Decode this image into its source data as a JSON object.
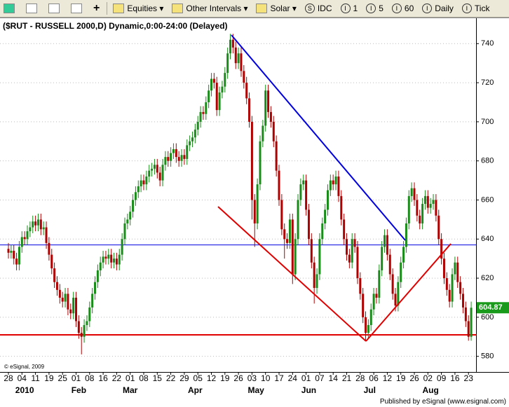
{
  "toolbar": {
    "menus": [
      "Equities",
      "Other Intervals",
      "Solar"
    ],
    "intervals": [
      "IDC",
      "1",
      "5",
      "60",
      "Daily",
      "Tick"
    ]
  },
  "footer": "Published by eSignal (www.esignal.com)",
  "chart_data": {
    "type": "candlestick",
    "title": "($RUT - RUSSELL 2000,D) Dynamic,0:00-24:00 (Delayed)",
    "copyright": "© eSignal, 2009",
    "up_color": "#1a8c1a",
    "down_color": "#b00000",
    "ylim": [
      572,
      753
    ],
    "yticks": [
      580,
      600,
      620,
      640,
      660,
      680,
      700,
      720,
      740
    ],
    "grid": true,
    "reference_lines": [
      {
        "value": 591,
        "color": "#e00000"
      },
      {
        "value": 637,
        "color": "#0000e0"
      }
    ],
    "months": [
      "2010",
      "Feb",
      "Mar",
      "Apr",
      "May",
      "Jun",
      "Jul",
      "Aug"
    ],
    "categories": [
      "28",
      null,
      null,
      null,
      null,
      "04",
      null,
      null,
      null,
      null,
      "11",
      null,
      null,
      null,
      null,
      "19",
      null,
      null,
      null,
      null,
      "25",
      null,
      null,
      null,
      null,
      "01",
      null,
      null,
      null,
      null,
      "08",
      null,
      null,
      null,
      null,
      "16",
      null,
      null,
      null,
      null,
      "22",
      null,
      null,
      null,
      null,
      "01",
      null,
      null,
      null,
      null,
      "08",
      null,
      null,
      null,
      null,
      "15",
      null,
      null,
      null,
      null,
      "22",
      null,
      null,
      null,
      null,
      "29",
      null,
      null,
      null,
      null,
      "05",
      null,
      null,
      null,
      null,
      "12",
      null,
      null,
      null,
      null,
      "19",
      null,
      null,
      null,
      null,
      "26",
      null,
      null,
      null,
      null,
      "03",
      null,
      null,
      null,
      null,
      "10",
      null,
      null,
      null,
      null,
      "17",
      null,
      null,
      null,
      null,
      "24",
      null,
      null,
      null,
      null,
      "01",
      null,
      null,
      null,
      null,
      "07",
      null,
      null,
      null,
      null,
      "14",
      null,
      null,
      null,
      null,
      "21",
      null,
      null,
      null,
      null,
      "28",
      null,
      null,
      null,
      null,
      "06",
      null,
      null,
      null,
      null,
      "12",
      null,
      null,
      null,
      null,
      "19",
      null,
      null,
      null,
      null,
      "26",
      null,
      null,
      null,
      null,
      "02",
      null,
      null,
      null,
      null,
      "09",
      null,
      null,
      null,
      null,
      "16",
      null,
      null,
      null,
      null,
      "23",
      null
    ],
    "open": [
      635,
      633,
      634,
      630,
      627,
      636,
      641,
      640,
      644,
      646,
      649,
      647,
      650,
      645,
      646,
      638,
      632,
      625,
      618,
      614,
      610,
      608,
      612,
      604,
      602,
      610,
      598,
      592,
      590,
      596,
      598,
      605,
      612,
      618,
      624,
      628,
      631,
      630,
      632,
      628,
      630,
      627,
      632,
      640,
      648,
      650,
      654,
      660,
      664,
      667,
      670,
      668,
      672,
      675,
      676,
      678,
      674,
      670,
      678,
      682,
      680,
      684,
      686,
      682,
      680,
      683,
      681,
      688,
      690,
      692,
      696,
      700,
      705,
      704,
      710,
      716,
      722,
      720,
      706,
      715,
      718,
      725,
      735,
      742,
      738,
      730,
      735,
      726,
      720,
      712,
      700,
      660,
      648,
      668,
      690,
      698,
      716,
      705,
      700,
      690,
      675,
      660,
      645,
      640,
      638,
      650,
      622,
      640,
      660,
      668,
      670,
      655,
      640,
      628,
      615,
      622,
      640,
      648,
      655,
      665,
      670,
      668,
      672,
      662,
      650,
      640,
      632,
      628,
      640,
      636,
      620,
      612,
      600,
      592,
      596,
      604,
      612,
      610,
      624,
      636,
      642,
      632,
      622,
      612,
      606,
      618,
      628,
      636,
      648,
      662,
      666,
      660,
      652,
      648,
      658,
      662,
      656,
      658,
      660,
      652,
      640,
      630,
      620,
      614,
      608,
      622,
      628,
      618,
      612,
      605,
      598,
      590
    ],
    "high": [
      638,
      637,
      637,
      633,
      639,
      644,
      644,
      647,
      649,
      652,
      652,
      653,
      653,
      649,
      649,
      641,
      635,
      628,
      621,
      617,
      613,
      615,
      615,
      607,
      613,
      613,
      601,
      595,
      599,
      601,
      608,
      615,
      621,
      627,
      631,
      634,
      634,
      635,
      635,
      633,
      633,
      635,
      643,
      651,
      653,
      657,
      663,
      667,
      670,
      673,
      673,
      675,
      678,
      679,
      681,
      681,
      677,
      681,
      685,
      685,
      687,
      689,
      689,
      685,
      686,
      686,
      691,
      693,
      695,
      699,
      703,
      708,
      708,
      713,
      719,
      725,
      725,
      723,
      718,
      721,
      728,
      738,
      745,
      745,
      741,
      738,
      738,
      729,
      723,
      715,
      703,
      663,
      671,
      693,
      701,
      719,
      719,
      708,
      703,
      693,
      678,
      663,
      648,
      643,
      653,
      653,
      643,
      663,
      671,
      673,
      673,
      658,
      643,
      631,
      625,
      643,
      651,
      658,
      668,
      673,
      673,
      675,
      675,
      665,
      653,
      643,
      635,
      643,
      643,
      639,
      623,
      615,
      603,
      599,
      607,
      615,
      615,
      627,
      639,
      645,
      645,
      635,
      625,
      615,
      621,
      631,
      639,
      651,
      665,
      669,
      669,
      663,
      655,
      661,
      665,
      665,
      661,
      663,
      663,
      655,
      643,
      633,
      623,
      617,
      625,
      631,
      631,
      621,
      615,
      608,
      601,
      608
    ],
    "low": [
      630,
      630,
      627,
      624,
      624,
      633,
      637,
      637,
      641,
      643,
      644,
      644,
      642,
      642,
      635,
      629,
      622,
      615,
      611,
      607,
      605,
      605,
      601,
      599,
      599,
      595,
      589,
      581,
      587,
      593,
      595,
      602,
      609,
      615,
      621,
      625,
      627,
      627,
      625,
      625,
      624,
      624,
      629,
      637,
      645,
      647,
      651,
      657,
      661,
      664,
      665,
      665,
      669,
      672,
      673,
      671,
      667,
      667,
      675,
      677,
      677,
      681,
      679,
      677,
      677,
      678,
      678,
      685,
      687,
      689,
      693,
      697,
      701,
      701,
      707,
      713,
      717,
      703,
      703,
      712,
      715,
      722,
      732,
      735,
      727,
      727,
      723,
      717,
      709,
      697,
      650,
      636,
      645,
      665,
      687,
      695,
      702,
      697,
      687,
      672,
      657,
      642,
      630,
      635,
      635,
      617,
      619,
      637,
      657,
      665,
      652,
      637,
      625,
      607,
      612,
      619,
      637,
      645,
      652,
      662,
      665,
      665,
      659,
      647,
      637,
      629,
      625,
      625,
      633,
      617,
      609,
      597,
      588,
      589,
      593,
      601,
      607,
      607,
      621,
      633,
      629,
      619,
      609,
      603,
      603,
      615,
      625,
      633,
      645,
      659,
      657,
      649,
      645,
      645,
      655,
      653,
      653,
      655,
      649,
      637,
      627,
      617,
      611,
      605,
      605,
      619,
      615,
      609,
      602,
      595,
      588,
      588
    ],
    "close": [
      633,
      634,
      630,
      627,
      636,
      641,
      640,
      644,
      646,
      649,
      647,
      650,
      645,
      646,
      638,
      632,
      625,
      618,
      614,
      610,
      608,
      612,
      604,
      602,
      610,
      598,
      592,
      590,
      596,
      598,
      605,
      612,
      618,
      624,
      628,
      631,
      630,
      632,
      628,
      630,
      627,
      632,
      640,
      648,
      650,
      654,
      660,
      664,
      667,
      670,
      668,
      672,
      675,
      676,
      678,
      674,
      670,
      678,
      682,
      680,
      684,
      686,
      682,
      680,
      683,
      681,
      688,
      690,
      692,
      696,
      700,
      705,
      704,
      710,
      716,
      722,
      720,
      706,
      715,
      718,
      725,
      735,
      742,
      738,
      730,
      735,
      726,
      720,
      712,
      700,
      660,
      648,
      668,
      690,
      698,
      716,
      705,
      700,
      690,
      675,
      660,
      645,
      640,
      638,
      650,
      622,
      640,
      660,
      668,
      670,
      655,
      640,
      628,
      615,
      622,
      640,
      648,
      655,
      665,
      670,
      668,
      672,
      662,
      650,
      640,
      632,
      628,
      640,
      636,
      620,
      612,
      600,
      592,
      596,
      604,
      612,
      610,
      624,
      636,
      642,
      632,
      622,
      612,
      606,
      618,
      628,
      636,
      648,
      662,
      666,
      660,
      652,
      648,
      658,
      662,
      656,
      658,
      660,
      652,
      640,
      630,
      620,
      614,
      608,
      622,
      628,
      618,
      612,
      605,
      598,
      590,
      604.87
    ]
  }
}
